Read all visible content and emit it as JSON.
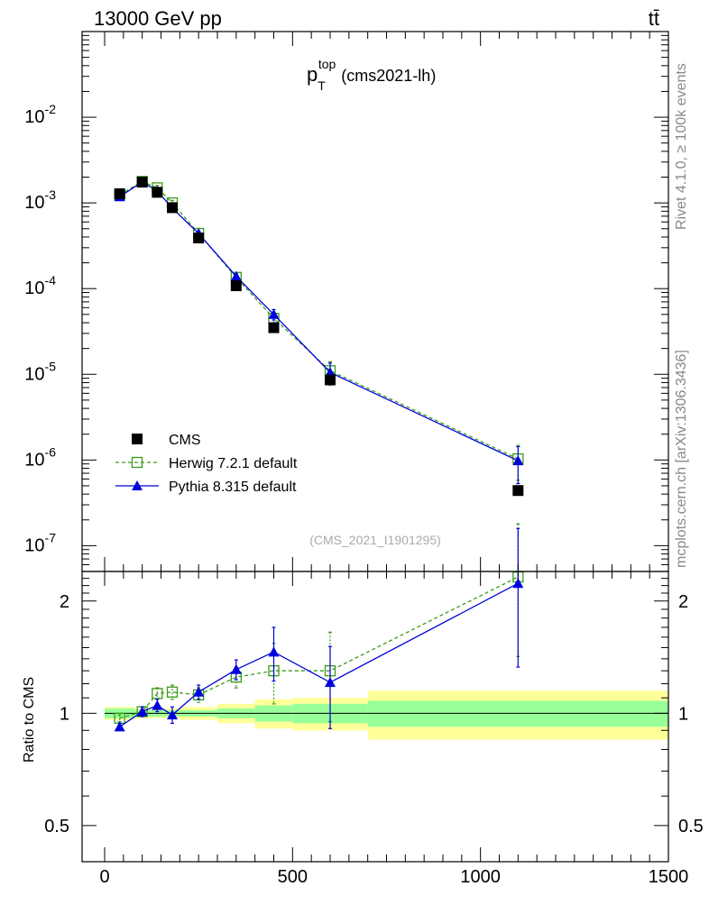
{
  "header": {
    "left": "13000 GeV pp",
    "right": "tt̄"
  },
  "side_labels": {
    "rivet": "Rivet 4.1.0, ≥ 100k events",
    "mcplots": "mcplots.cern.ch [arXiv:1306.3436]"
  },
  "watermark": "(CMS_2021_I1901295)",
  "colors": {
    "cms": "#000000",
    "herwig": "#3a9a1a",
    "pythia": "#0000dd",
    "band_outer": "#ffff99",
    "band_inner": "#99ff99"
  },
  "chart_data": [
    {
      "type": "scatter",
      "panel": "main",
      "title": {
        "main": "p",
        "sub": "T",
        "sup": "top",
        "suffix": "(cms2021-lh)"
      },
      "xlabel": "",
      "ylabel": "",
      "yscale": "log",
      "xlim": [
        -60,
        1500
      ],
      "ylim": [
        5e-08,
        0.1
      ],
      "yticks": [
        {
          "value": 1e-07,
          "base": "10",
          "exp": "-7"
        },
        {
          "value": 1e-06,
          "base": "10",
          "exp": "-6"
        },
        {
          "value": 1e-05,
          "base": "10",
          "exp": "-5"
        },
        {
          "value": 0.0001,
          "base": "10",
          "exp": "-4"
        },
        {
          "value": 0.001,
          "base": "10",
          "exp": "-3"
        },
        {
          "value": 0.01,
          "base": "10",
          "exp": "-2"
        }
      ],
      "legend": {
        "position": "lower-left"
      },
      "series": [
        {
          "name": "CMS",
          "style": "data",
          "x": [
            40,
            100,
            140,
            180,
            250,
            350,
            450,
            600,
            1100
          ],
          "y": [
            0.00128,
            0.00175,
            0.00133,
            0.00088,
            0.00039,
            0.000108,
            3.5e-05,
            8.6e-06,
            4.4e-07
          ]
        },
        {
          "name": "Herwig 7.2.1 default",
          "style": "herwig",
          "x": [
            40,
            100,
            140,
            180,
            250,
            350,
            450,
            600,
            1100
          ],
          "y": [
            0.00124,
            0.00178,
            0.0015,
            0.001,
            0.00044,
            0.000135,
            4.5e-05,
            1.1e-05,
            1.03e-06
          ],
          "err": [
            0.0001,
            0.0001,
            0.0001,
            7e-05,
            3e-05,
            1e-05,
            6e-06,
            3e-06,
            4.5e-07
          ]
        },
        {
          "name": "Pythia 8.315 default",
          "style": "pythia",
          "x": [
            40,
            100,
            140,
            180,
            250,
            350,
            450,
            600,
            1100
          ],
          "y": [
            0.00118,
            0.00176,
            0.00138,
            0.00087,
            0.00044,
            0.000139,
            5e-05,
            1.05e-05,
            9.8e-07
          ],
          "err": [
            0.0001,
            0.0001,
            0.0001,
            7e-05,
            3e-05,
            1e-05,
            7e-06,
            3e-06,
            4.5e-07
          ]
        }
      ]
    },
    {
      "type": "scatter",
      "panel": "ratio",
      "ylabel": "Ratio to CMS",
      "xlabel": "",
      "yscale": "log",
      "xlim": [
        -60,
        1500
      ],
      "ylim": [
        0.4,
        2.4
      ],
      "xticks": [
        {
          "value": 0,
          "label": "0"
        },
        {
          "value": 500,
          "label": "500"
        },
        {
          "value": 1000,
          "label": "1000"
        },
        {
          "value": 1500,
          "label": "1500"
        }
      ],
      "yticks": [
        {
          "value": 0.5,
          "label": "0.5"
        },
        {
          "value": 1,
          "label": "1"
        },
        {
          "value": 2,
          "label": "2"
        }
      ],
      "bands": {
        "edges": [
          0,
          80,
          120,
          160,
          200,
          300,
          400,
          500,
          700,
          1500
        ],
        "inner": [
          0.03,
          0.02,
          0.02,
          0.02,
          0.02,
          0.03,
          0.05,
          0.06,
          0.08
        ],
        "outer": [
          0.04,
          0.03,
          0.03,
          0.03,
          0.04,
          0.06,
          0.09,
          0.1,
          0.15
        ]
      },
      "series": [
        {
          "name": "Herwig 7.2.1 default",
          "style": "herwig",
          "x": [
            40,
            100,
            140,
            180,
            250,
            350,
            450,
            600,
            1100
          ],
          "y": [
            0.97,
            1.01,
            1.13,
            1.14,
            1.12,
            1.25,
            1.3,
            1.3,
            2.32
          ],
          "err": [
            0.02,
            0.03,
            0.04,
            0.05,
            0.05,
            0.08,
            0.24,
            0.35,
            0.9
          ]
        },
        {
          "name": "Pythia 8.315 default",
          "style": "pythia",
          "x": [
            40,
            100,
            140,
            180,
            250,
            350,
            450,
            600,
            1100
          ],
          "y": [
            0.92,
            1.01,
            1.05,
            0.99,
            1.14,
            1.31,
            1.46,
            1.21,
            2.23
          ],
          "err": [
            0.02,
            0.03,
            0.04,
            0.05,
            0.05,
            0.08,
            0.24,
            0.3,
            0.9
          ]
        }
      ]
    }
  ]
}
